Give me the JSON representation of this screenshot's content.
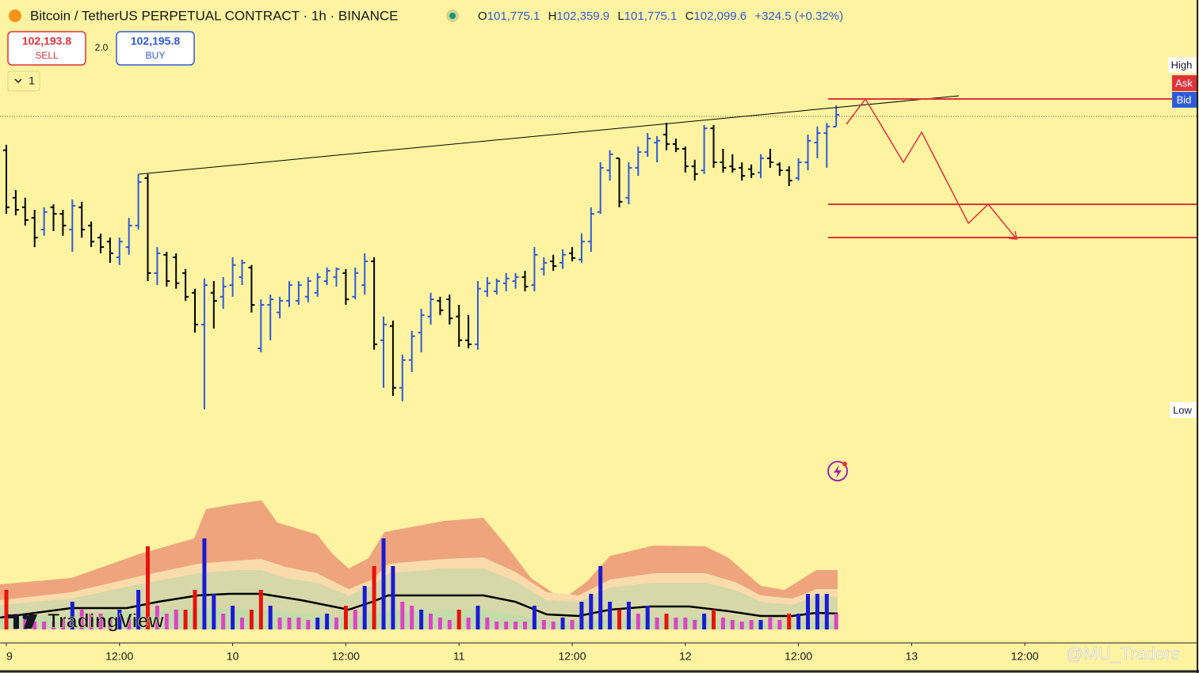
{
  "header": {
    "title": "Bitcoin / TetherUS PERPETUAL CONTRACT · 1h · BINANCE",
    "ohlc": [
      {
        "label": "O",
        "value": "101,775.1"
      },
      {
        "label": "H",
        "value": "102,359.9"
      },
      {
        "label": "L",
        "value": "101,775.1"
      },
      {
        "label": "C",
        "value": "102,099.6"
      }
    ],
    "change": "+324.5 (+0.32%)"
  },
  "trade": {
    "sell_price": "102,193.8",
    "sell": "SELL",
    "spread": "2.0",
    "buy_price": "102,195.8",
    "buy": "BUY",
    "lots": "1"
  },
  "price_labels": {
    "high": "High",
    "ask": "Ask",
    "bid": "Bid",
    "low": "Low"
  },
  "brand": "TradingView",
  "watermark": "@MU_Traders",
  "chart_data": {
    "type": "ohlc",
    "up_color": "#2f5bd8",
    "down_color": "#000000",
    "open": [
      101130,
      99830,
      99570,
      99280,
      98960,
      99570,
      99390,
      98960,
      99570,
      99070,
      98740,
      98630,
      98200,
      98480,
      99070,
      100370,
      97770,
      98270,
      98200,
      97770,
      97230,
      96360,
      97230,
      97120,
      97440,
      97660,
      97920,
      95710,
      96900,
      96690,
      97010,
      97010,
      97120,
      97230,
      97550,
      97660,
      97770,
      97120,
      97440,
      98090,
      95930,
      96320,
      94630,
      95390,
      96140,
      96580,
      97010,
      97050,
      96580,
      95930,
      95820,
      97270,
      97270,
      97490,
      97550,
      97660,
      97440,
      97880,
      98090,
      98050,
      98310,
      98140,
      98630,
      99440,
      100580,
      100910,
      99830,
      100650,
      101080,
      101340,
      101560,
      101300,
      101170,
      100690,
      100580,
      101730,
      100800,
      100690,
      100650,
      100610,
      100520,
      100910,
      100740,
      100580,
      100370,
      100800,
      101340,
      101600,
      101775.1
    ],
    "high": [
      101280,
      100040,
      99830,
      99500,
      99570,
      99650,
      99500,
      99780,
      99720,
      99180,
      98850,
      98740,
      98740,
      99280,
      100480,
      100480,
      98480,
      98350,
      98310,
      97880,
      97340,
      97620,
      97550,
      97660,
      98200,
      98140,
      97990,
      97050,
      97180,
      97120,
      97550,
      97550,
      97660,
      97770,
      97920,
      97920,
      97880,
      97920,
      98310,
      98200,
      96580,
      96470,
      95540,
      96190,
      96790,
      97230,
      97120,
      97180,
      96900,
      96620,
      97550,
      97660,
      97620,
      97770,
      97770,
      97830,
      98480,
      98200,
      98270,
      98420,
      98480,
      98850,
      99570,
      100800,
      101130,
      100910,
      100800,
      101230,
      101600,
      101520,
      101880,
      101450,
      101230,
      100870,
      101820,
      101820,
      101170,
      101020,
      100800,
      100740,
      101020,
      101170,
      100800,
      100690,
      100910,
      101560,
      101780,
      101880,
      102359.9
    ],
    "low": [
      99390,
      99350,
      99070,
      98480,
      98790,
      98920,
      98790,
      98350,
      98740,
      98480,
      98310,
      98050,
      97990,
      98270,
      98960,
      97550,
      97440,
      97400,
      97340,
      97010,
      96140,
      94040,
      96250,
      96790,
      97120,
      97440,
      96690,
      95600,
      95930,
      96530,
      96840,
      96900,
      96970,
      97120,
      97440,
      97400,
      96900,
      97050,
      97180,
      95670,
      94630,
      94410,
      94260,
      95060,
      95600,
      96360,
      96620,
      96360,
      95750,
      95710,
      95670,
      97120,
      97180,
      97270,
      97340,
      97270,
      97270,
      97700,
      97830,
      97880,
      98090,
      98050,
      98350,
      99390,
      100300,
      99570,
      99650,
      100430,
      100950,
      100800,
      101130,
      101080,
      100520,
      100300,
      100480,
      100650,
      100520,
      100520,
      100300,
      100370,
      100370,
      100650,
      100430,
      100150,
      100300,
      100580,
      100910,
      100650,
      101775.1
    ],
    "close": [
      99570,
      99500,
      99220,
      98740,
      99440,
      99390,
      99070,
      99610,
      98960,
      98630,
      98480,
      98310,
      98630,
      99070,
      100260,
      97770,
      98310,
      97550,
      97490,
      97120,
      96360,
      97440,
      97010,
      97400,
      97990,
      98050,
      96900,
      96900,
      97050,
      97010,
      97440,
      97440,
      97550,
      97660,
      97830,
      97880,
      97050,
      97770,
      98090,
      95820,
      96360,
      94630,
      95390,
      96040,
      96620,
      97050,
      96750,
      96530,
      95930,
      95820,
      97340,
      97490,
      97550,
      97620,
      97660,
      97400,
      98270,
      98050,
      97960,
      98270,
      98180,
      98630,
      99390,
      100650,
      101020,
      99720,
      100650,
      101080,
      101450,
      101390,
      101300,
      101170,
      100690,
      100480,
      101730,
      100800,
      100650,
      100610,
      100430,
      100480,
      100910,
      100800,
      100580,
      100300,
      100800,
      101390,
      101600,
      101780,
      102099.6
    ],
    "volume": [
      50,
      20,
      15,
      10,
      10,
      10,
      15,
      35,
      25,
      20,
      20,
      15,
      25,
      15,
      50,
      105,
      30,
      20,
      25,
      25,
      50,
      115,
      45,
      20,
      30,
      15,
      25,
      50,
      30,
      15,
      15,
      15,
      12,
      15,
      20,
      15,
      30,
      25,
      55,
      80,
      115,
      80,
      35,
      30,
      25,
      20,
      15,
      12,
      25,
      15,
      30,
      15,
      10,
      10,
      10,
      10,
      30,
      12,
      10,
      15,
      12,
      35,
      45,
      80,
      35,
      25,
      35,
      20,
      30,
      15,
      20,
      15,
      15,
      12,
      20,
      25,
      15,
      12,
      10,
      12,
      12,
      15,
      12,
      20,
      20,
      45,
      45,
      45,
      20
    ],
    "volume_colors": [
      "#e8120c",
      "#dc44c4",
      "#dc44c4",
      "#dc44c4",
      "#dc44c4",
      "#dc44c4",
      "#dc44c4",
      "#1a1ad6",
      "#dc44c4",
      "#dc44c4",
      "#dc44c4",
      "#dc44c4",
      "#1a1ad6",
      "#dc44c4",
      "#1a1ad6",
      "#e8120c",
      "#dc44c4",
      "#dc44c4",
      "#dc44c4",
      "#e8120c",
      "#e8120c",
      "#1a1ad6",
      "#1a1ad6",
      "#dc44c4",
      "#1a1ad6",
      "#dc44c4",
      "#e8120c",
      "#e8120c",
      "#1a1ad6",
      "#dc44c4",
      "#dc44c4",
      "#dc44c4",
      "#dc44c4",
      "#1a1ad6",
      "#1a1ad6",
      "#dc44c4",
      "#e8120c",
      "#dc44c4",
      "#1a1ad6",
      "#e8120c",
      "#1a1ad6",
      "#1a1ad6",
      "#dc44c4",
      "#dc44c4",
      "#1a1ad6",
      "#dc44c4",
      "#dc44c4",
      "#dc44c4",
      "#e8120c",
      "#dc44c4",
      "#1a1ad6",
      "#dc44c4",
      "#dc44c4",
      "#dc44c4",
      "#dc44c4",
      "#dc44c4",
      "#1a1ad6",
      "#dc44c4",
      "#dc44c4",
      "#1a1ad6",
      "#dc44c4",
      "#1a1ad6",
      "#1a1ad6",
      "#1a1ad6",
      "#1a1ad6",
      "#e8120c",
      "#1a1ad6",
      "#dc44c4",
      "#1a1ad6",
      "#dc44c4",
      "#e8120c",
      "#dc44c4",
      "#dc44c4",
      "#dc44c4",
      "#1a1ad6",
      "#e8120c",
      "#dc44c4",
      "#dc44c4",
      "#dc44c4",
      "#dc44c4",
      "#1a1ad6",
      "#dc44c4",
      "#dc44c4",
      "#e8120c",
      "#1a1ad6",
      "#1a1ad6",
      "#1a1ad6",
      "#1a1ad6",
      "#dc44c4"
    ],
    "xticks": [
      {
        "value": 0,
        "label": "9"
      },
      {
        "value": 12,
        "label": "12:00"
      },
      {
        "value": 24,
        "label": "10"
      },
      {
        "value": 36,
        "label": "12:00"
      },
      {
        "value": 48,
        "label": "11"
      },
      {
        "value": 60,
        "label": "12:00"
      },
      {
        "value": 72,
        "label": "12"
      },
      {
        "value": 84,
        "label": "12:00"
      },
      {
        "value": 96,
        "label": "13"
      },
      {
        "value": 108,
        "label": "12:00"
      }
    ]
  }
}
